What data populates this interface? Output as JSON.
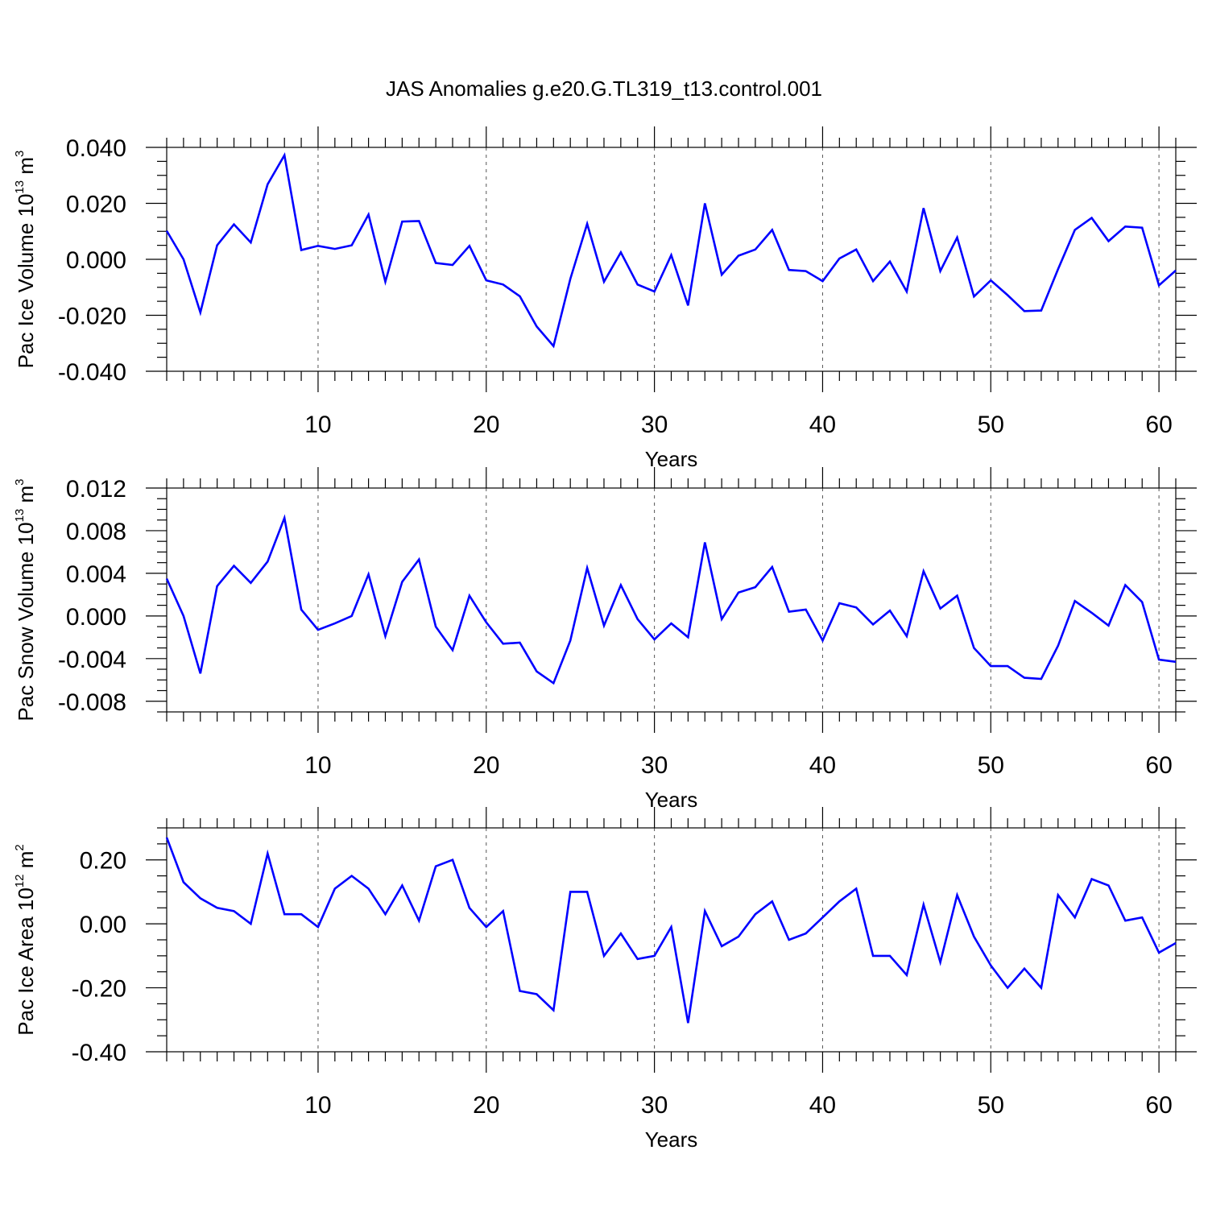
{
  "title": "JAS Anomalies g.e20.G.TL319_t13.control.001",
  "chart_data": [
    {
      "type": "line",
      "xlabel": "Years",
      "ylabel": "Pac Ice Volume 10",
      "ylabel_exponent": "13",
      "ylabel_unit": " m",
      "ylabel_unit_exponent": "3",
      "xlim": [
        1,
        61
      ],
      "ylim": [
        -0.04,
        0.04
      ],
      "xticks": [
        10,
        20,
        30,
        40,
        50,
        60
      ],
      "xtick_labels": [
        "10",
        "20",
        "30",
        "40",
        "50",
        "60"
      ],
      "yticks": [
        -0.04,
        -0.02,
        0.0,
        0.02,
        0.04
      ],
      "ytick_labels": [
        "-0.040",
        "-0.020",
        "0.000",
        "0.020",
        "0.040"
      ],
      "grid": "vertical dashed at x ticks",
      "color": "#0000ff",
      "x": [
        1,
        2,
        3,
        4,
        5,
        6,
        7,
        8,
        9,
        10,
        11,
        12,
        13,
        14,
        15,
        16,
        17,
        18,
        19,
        20,
        21,
        22,
        23,
        24,
        25,
        26,
        27,
        28,
        29,
        30,
        31,
        32,
        33,
        34,
        35,
        36,
        37,
        38,
        39,
        40,
        41,
        42,
        43,
        44,
        45,
        46,
        47,
        48,
        49,
        50,
        51,
        52,
        53,
        54,
        55,
        56,
        57,
        58,
        59,
        60,
        61
      ],
      "values": [
        0.0102,
        0.0,
        -0.019,
        0.005,
        0.0125,
        0.006,
        0.0268,
        0.0372,
        0.0033,
        0.0048,
        0.0037,
        0.005,
        0.016,
        -0.008,
        0.0135,
        0.0137,
        -0.0013,
        -0.002,
        0.0048,
        -0.0075,
        -0.009,
        -0.0132,
        -0.024,
        -0.031,
        -0.007,
        0.0127,
        -0.008,
        0.0025,
        -0.009,
        -0.0115,
        0.0015,
        -0.0165,
        0.02,
        -0.0055,
        0.0013,
        0.0035,
        0.0105,
        -0.0038,
        -0.0042,
        -0.0078,
        0.0003,
        0.0035,
        -0.0078,
        -0.0008,
        -0.0115,
        0.0183,
        -0.0042,
        0.0078,
        -0.0133,
        -0.0075,
        -0.0128,
        -0.0185,
        -0.0183,
        -0.0035,
        0.0105,
        0.0148,
        0.0065,
        0.0117,
        0.0113,
        -0.0093,
        -0.004
      ]
    },
    {
      "type": "line",
      "xlabel": "Years",
      "ylabel": "Pac Snow Volume 10",
      "ylabel_exponent": "13",
      "ylabel_unit": " m",
      "ylabel_unit_exponent": "3",
      "xlim": [
        1,
        61
      ],
      "ylim": [
        -0.009,
        0.012
      ],
      "xticks": [
        10,
        20,
        30,
        40,
        50,
        60
      ],
      "xtick_labels": [
        "10",
        "20",
        "30",
        "40",
        "50",
        "60"
      ],
      "yticks": [
        -0.008,
        -0.004,
        0.0,
        0.004,
        0.008,
        0.012
      ],
      "ytick_labels": [
        "-0.008",
        "-0.004",
        "0.000",
        "0.004",
        "0.008",
        "0.012"
      ],
      "grid": "vertical dashed at x ticks",
      "color": "#0000ff",
      "x": [
        1,
        2,
        3,
        4,
        5,
        6,
        7,
        8,
        9,
        10,
        11,
        12,
        13,
        14,
        15,
        16,
        17,
        18,
        19,
        20,
        21,
        22,
        23,
        24,
        25,
        26,
        27,
        28,
        29,
        30,
        31,
        32,
        33,
        34,
        35,
        36,
        37,
        38,
        39,
        40,
        41,
        42,
        43,
        44,
        45,
        46,
        47,
        48,
        49,
        50,
        51,
        52,
        53,
        54,
        55,
        56,
        57,
        58,
        59,
        60,
        61
      ],
      "values": [
        0.0035,
        0.0,
        -0.0054,
        0.0028,
        0.0047,
        0.0031,
        0.0051,
        0.0092,
        0.0006,
        -0.0013,
        -0.0007,
        0.0,
        0.0039,
        -0.0019,
        0.0032,
        0.0053,
        -0.001,
        -0.0032,
        0.0019,
        -0.0006,
        -0.0026,
        -0.0025,
        -0.0052,
        -0.0063,
        -0.0023,
        0.0045,
        -0.0009,
        0.0029,
        -0.0003,
        -0.0022,
        -0.0007,
        -0.002,
        0.0069,
        -0.0003,
        0.0022,
        0.0027,
        0.0046,
        0.0004,
        0.0006,
        -0.0023,
        0.0012,
        0.0008,
        -0.0008,
        0.0005,
        -0.0019,
        0.0042,
        0.0007,
        0.0019,
        -0.003,
        -0.0047,
        -0.0047,
        -0.0058,
        -0.0059,
        -0.0028,
        0.0014,
        0.0003,
        -0.0009,
        0.0029,
        0.0013,
        -0.0041,
        -0.0043
      ]
    },
    {
      "type": "line",
      "xlabel": "Years",
      "ylabel": "Pac Ice Area 10",
      "ylabel_exponent": "12",
      "ylabel_unit": " m",
      "ylabel_unit_exponent": "2",
      "xlim": [
        1,
        61
      ],
      "ylim": [
        -0.4,
        0.3
      ],
      "xticks": [
        10,
        20,
        30,
        40,
        50,
        60
      ],
      "xtick_labels": [
        "10",
        "20",
        "30",
        "40",
        "50",
        "60"
      ],
      "yticks": [
        -0.4,
        -0.2,
        0.0,
        0.2
      ],
      "ytick_labels": [
        "-0.40",
        "-0.20",
        "0.00",
        "0.20"
      ],
      "grid": "vertical dashed at x ticks",
      "color": "#0000ff",
      "x": [
        1,
        2,
        3,
        4,
        5,
        6,
        7,
        8,
        9,
        10,
        11,
        12,
        13,
        14,
        15,
        16,
        17,
        18,
        19,
        20,
        21,
        22,
        23,
        24,
        25,
        26,
        27,
        28,
        29,
        30,
        31,
        32,
        33,
        34,
        35,
        36,
        37,
        38,
        39,
        40,
        41,
        42,
        43,
        44,
        45,
        46,
        47,
        48,
        49,
        50,
        51,
        52,
        53,
        54,
        55,
        56,
        57,
        58,
        59,
        60,
        61
      ],
      "values": [
        0.27,
        0.13,
        0.08,
        0.05,
        0.04,
        0.0,
        0.22,
        0.03,
        0.03,
        -0.01,
        0.11,
        0.15,
        0.11,
        0.03,
        0.12,
        0.01,
        0.18,
        0.2,
        0.05,
        -0.01,
        0.04,
        -0.21,
        -0.22,
        -0.27,
        0.1,
        0.1,
        -0.1,
        -0.03,
        -0.11,
        -0.1,
        -0.01,
        -0.31,
        0.04,
        -0.07,
        -0.04,
        0.03,
        0.07,
        -0.05,
        -0.03,
        0.02,
        0.07,
        0.11,
        -0.1,
        -0.1,
        -0.16,
        0.06,
        -0.12,
        0.09,
        -0.04,
        -0.13,
        -0.2,
        -0.14,
        -0.2,
        0.09,
        0.02,
        0.14,
        0.12,
        0.01,
        0.02,
        -0.09,
        -0.06
      ]
    }
  ]
}
